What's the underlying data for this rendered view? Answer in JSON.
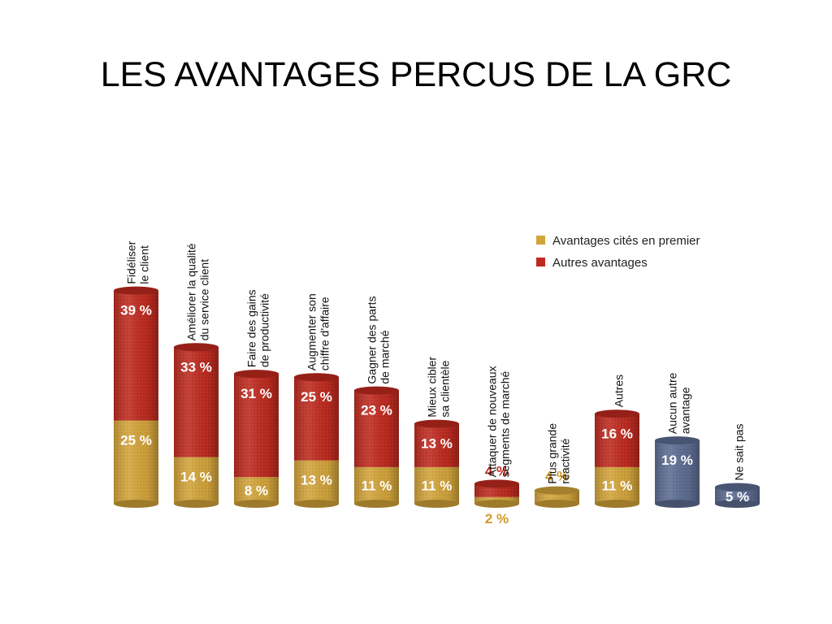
{
  "slide": {
    "title": "LES AVANTAGES PERCUS DE LA GRC"
  },
  "colors": {
    "primary": "#d3a43a",
    "other": "#bf2a1f",
    "none": "#5d6d92",
    "label_outside_primary": "#d39a2a",
    "label_outside_other": "#c2281c"
  },
  "chart_data": {
    "type": "bar",
    "stacked": true,
    "title": "",
    "xlabel": "",
    "ylabel": "",
    "ylim": [
      0,
      70
    ],
    "grid": false,
    "legend_position": "top-right",
    "unit": "%",
    "legend": [
      {
        "key": "primary",
        "label": "Avantages cités en premier"
      },
      {
        "key": "other",
        "label": "Autres avantages"
      }
    ],
    "categories": [
      [
        "Fidéliser",
        "le client"
      ],
      [
        "Améliorer la qualité",
        "du service client"
      ],
      [
        "Faire des gains",
        "de productivité"
      ],
      [
        "Augmenter son",
        "chiffre d'affaire"
      ],
      [
        "Gagner des parts",
        "de marché"
      ],
      [
        "Mieux cibler",
        "sa clientèle"
      ],
      [
        "Attaquer de nouveaux",
        "segments de marché"
      ],
      [
        "Plus grande",
        "réactivité"
      ],
      [
        "Autres"
      ],
      [
        "Aucun autre",
        "avantage"
      ],
      [
        "Ne sait pas"
      ]
    ],
    "series": [
      {
        "name": "Avantages cités en premier",
        "key": "primary",
        "values": [
          25,
          14,
          8,
          13,
          11,
          11,
          2,
          4,
          11,
          null,
          null
        ],
        "labels": [
          "25 %",
          "14 %",
          "8 %",
          "13 %",
          "11 %",
          "11 %",
          "2 %",
          "4 %",
          "11 %",
          "",
          ""
        ]
      },
      {
        "name": "Autres avantages",
        "key": "other",
        "values": [
          39,
          33,
          31,
          25,
          23,
          13,
          4,
          null,
          16,
          19,
          5
        ],
        "labels": [
          "39 %",
          "33 %",
          "31 %",
          "25 %",
          "23 %",
          "13 %",
          "4 %",
          "",
          "16 %",
          "19 %",
          "5 %"
        ]
      }
    ],
    "single_color_bars": {
      "9": "none",
      "10": "none"
    }
  }
}
